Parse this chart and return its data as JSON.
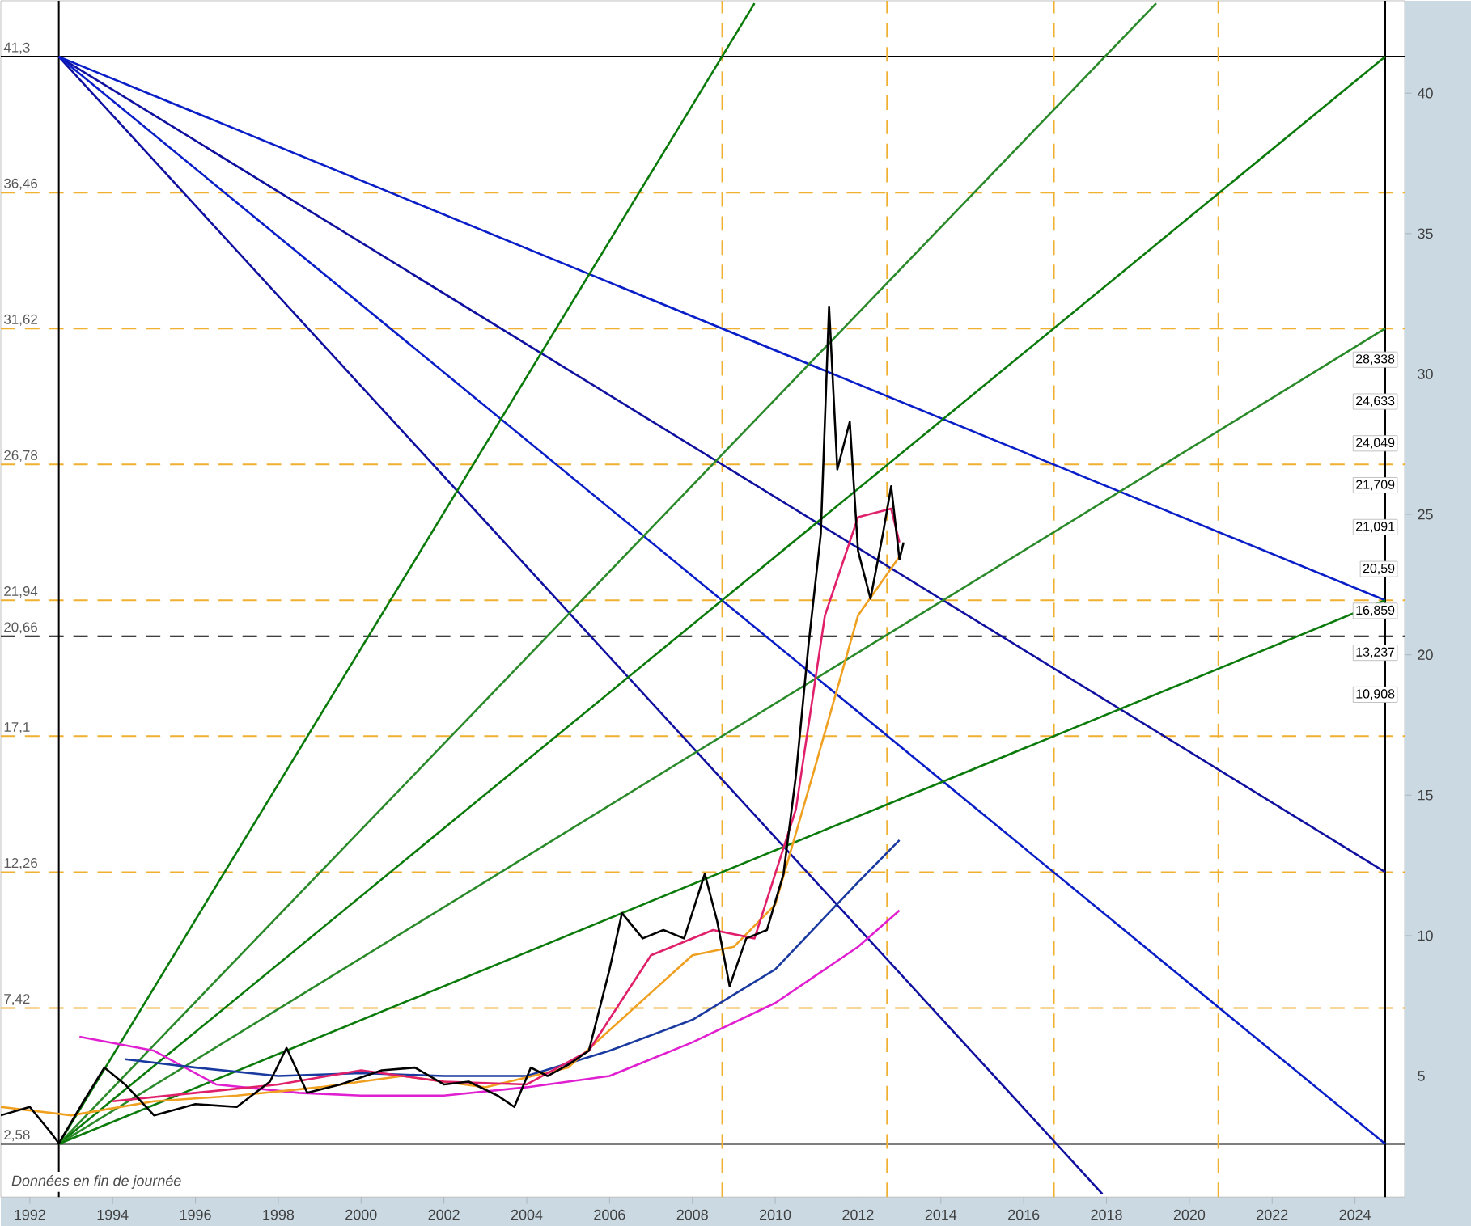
{
  "chart_data": {
    "type": "line",
    "xlim": [
      1991.3,
      2025.2
    ],
    "ylim": [
      0.69,
      43.29
    ],
    "xticks": [
      1992,
      1994,
      1996,
      1998,
      2000,
      2002,
      2004,
      2006,
      2008,
      2010,
      2012,
      2014,
      2016,
      2018,
      2020,
      2022,
      2024
    ],
    "yticks": [
      5,
      10,
      15,
      20,
      25,
      30,
      35,
      40
    ],
    "marker": "none",
    "line_style": "solid",
    "grid": false,
    "series": [
      {
        "color": "#1010a0",
        "x": [
          1992.7,
          2017.9
        ],
        "values": [
          41.3,
          0.8
        ]
      },
      {
        "color": "#1010a0",
        "x": [
          1992.7,
          2024.73
        ],
        "values": [
          41.3,
          12.26
        ]
      },
      {
        "color": "#0a1ec8",
        "x": [
          1992.7,
          2024.73
        ],
        "values": [
          41.3,
          21.94
        ]
      },
      {
        "color": "#0a1ec8",
        "x": [
          1992.7,
          2024.73
        ],
        "values": [
          41.3,
          2.58
        ]
      },
      {
        "color": "#0a7a0a",
        "x": [
          1992.7,
          2009.5
        ],
        "values": [
          2.58,
          43.2
        ]
      },
      {
        "color": "#2a8a2a",
        "x": [
          1992.7,
          2019.2
        ],
        "values": [
          2.58,
          43.2
        ]
      },
      {
        "color": "#0a7a0a",
        "x": [
          1992.7,
          2024.73
        ],
        "values": [
          2.58,
          41.3
        ]
      },
      {
        "color": "#2a8a2a",
        "x": [
          1992.7,
          2024.73
        ],
        "values": [
          2.58,
          31.62
        ]
      },
      {
        "color": "#0a7a0a",
        "x": [
          1992.7,
          2024.73
        ],
        "values": [
          2.58,
          21.94
        ]
      },
      {
        "color": "#e020d0",
        "x": [
          1993.2,
          1995,
          1996.5,
          1998.5,
          2000,
          2002,
          2004,
          2006,
          2008,
          2010,
          2012,
          2013
        ],
        "values": [
          6.4,
          5.9,
          4.7,
          4.4,
          4.3,
          4.3,
          4.6,
          5.0,
          6.2,
          7.6,
          9.6,
          10.9
        ]
      },
      {
        "color": "#1a3aa0",
        "x": [
          1994.3,
          1996,
          1998,
          2000,
          2002,
          2004,
          2006,
          2008,
          2010,
          2012,
          2013
        ],
        "values": [
          5.6,
          5.3,
          5.0,
          5.1,
          5.0,
          5.0,
          5.9,
          7.0,
          8.8,
          11.9,
          13.4
        ]
      },
      {
        "color": "#f0a020",
        "x": [
          1991.3,
          1993,
          1995,
          1997,
          1999,
          2001,
          2003,
          2005,
          2006.5,
          2008,
          2009,
          2010,
          2011,
          2012,
          2013
        ],
        "values": [
          3.9,
          3.6,
          4.1,
          4.3,
          4.6,
          5.0,
          4.6,
          5.3,
          7.3,
          9.3,
          9.6,
          11.1,
          16.2,
          21.4,
          23.5
        ]
      },
      {
        "color": "#e0206a",
        "x": [
          1994,
          1996,
          1998,
          2000,
          2002,
          2004,
          2005.5,
          2007,
          2008.5,
          2009.5,
          2010.5,
          2011.2,
          2012,
          2012.8,
          2013
        ],
        "values": [
          4.1,
          4.4,
          4.7,
          5.2,
          4.8,
          4.7,
          5.9,
          9.3,
          10.2,
          9.9,
          14.5,
          21.4,
          24.9,
          25.2,
          24.0
        ]
      },
      {
        "color": "#000000",
        "x": [
          1991.3,
          1992,
          1992.5,
          1992.7,
          1993.3,
          1993.8,
          1994.3,
          1995,
          1996,
          1997,
          1997.8,
          1998.2,
          1998.7,
          1999.5,
          2000.5,
          2001.3,
          2002,
          2002.6,
          2003.3,
          2003.7,
          2004.1,
          2004.5,
          2005,
          2005.5,
          2006,
          2006.3,
          2006.8,
          2007.3,
          2007.8,
          2008.3,
          2008.6,
          2008.9,
          2009.3,
          2009.8,
          2010.2,
          2010.5,
          2010.8,
          2011.1,
          2011.3,
          2011.5,
          2011.8,
          2012,
          2012.3,
          2012.6,
          2012.8,
          2013,
          2013.1
        ],
        "values": [
          3.6,
          3.9,
          3.0,
          2.6,
          4.1,
          5.3,
          4.7,
          3.6,
          4.0,
          3.9,
          4.8,
          6.0,
          4.4,
          4.7,
          5.2,
          5.3,
          4.7,
          4.8,
          4.3,
          3.9,
          5.3,
          5.0,
          5.4,
          5.9,
          8.8,
          10.8,
          9.9,
          10.2,
          9.9,
          12.2,
          10.5,
          8.2,
          9.9,
          10.2,
          12.2,
          15.7,
          20.3,
          24.3,
          32.4,
          26.6,
          28.3,
          23.7,
          22.0,
          24.3,
          26.0,
          23.4,
          24.0
        ]
      }
    ],
    "ref_lines": [
      {
        "axis": "y",
        "value": 41.3,
        "label": "41,3",
        "color": "#000000",
        "line_style": "solid"
      },
      {
        "axis": "y",
        "value": 36.46,
        "label": "36,46",
        "color": "#f0b030",
        "line_style": "dashed"
      },
      {
        "axis": "y",
        "value": 31.62,
        "label": "31,62",
        "color": "#f0b030",
        "line_style": "dashed"
      },
      {
        "axis": "y",
        "value": 26.78,
        "label": "26,78",
        "color": "#f0b030",
        "line_style": "dashed"
      },
      {
        "axis": "y",
        "value": 21.94,
        "label": "21,94",
        "color": "#f0b030",
        "line_style": "dashed"
      },
      {
        "axis": "y",
        "value": 20.66,
        "label": "20,66",
        "color": "#000000",
        "line_style": "dashed"
      },
      {
        "axis": "y",
        "value": 17.1,
        "label": "17,1",
        "color": "#f0b030",
        "line_style": "dashed"
      },
      {
        "axis": "y",
        "value": 12.26,
        "label": "12,26",
        "color": "#f0b030",
        "line_style": "dashed"
      },
      {
        "axis": "y",
        "value": 7.42,
        "label": "7,42",
        "color": "#f0b030",
        "line_style": "dashed"
      },
      {
        "axis": "y",
        "value": 2.58,
        "label": "2,58",
        "color": "#000000",
        "line_style": "solid"
      },
      {
        "axis": "x",
        "value": 1992.7,
        "color": "#000000",
        "line_style": "solid"
      },
      {
        "axis": "x",
        "value": 2008.72,
        "color": "#f0b030",
        "line_style": "dashed"
      },
      {
        "axis": "x",
        "value": 2012.7,
        "color": "#f0b030",
        "line_style": "dashed"
      },
      {
        "axis": "x",
        "value": 2016.73,
        "color": "#f0b030",
        "line_style": "dashed"
      },
      {
        "axis": "x",
        "value": 2020.7,
        "color": "#f0b030",
        "line_style": "dashed"
      },
      {
        "axis": "x",
        "value": 2024.73,
        "color": "#000000",
        "line_style": "solid"
      }
    ],
    "annotations": [
      "Données en fin de journée",
      "28,338",
      "24,633",
      "24,049",
      "21,709",
      "21,091",
      "20,59",
      "16,859",
      "13,237",
      "10,908"
    ]
  }
}
